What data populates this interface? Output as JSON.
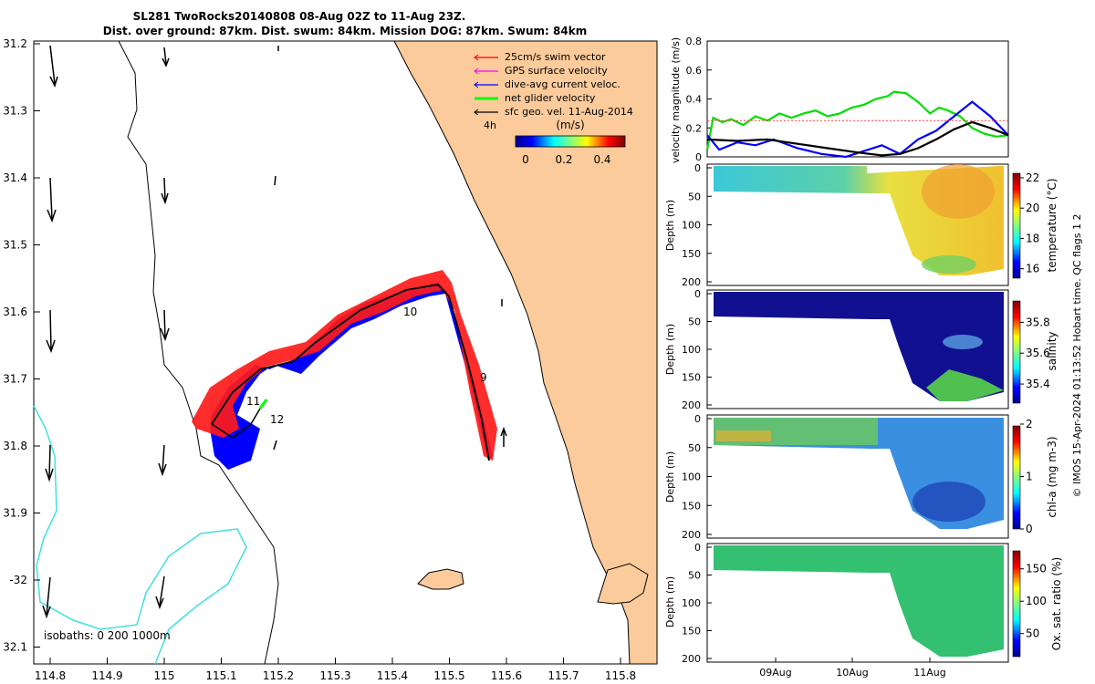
{
  "header": {
    "line1": "SL281 TwoRocks20140808 08-Aug 02Z to 11-Aug 23Z.",
    "line2": "Dist. over ground: 87km. Dist. swum: 84km. Mission DOG: 87km. Swum: 84km"
  },
  "map": {
    "lat_ticks": [
      "31.2",
      "31.3",
      "31.4",
      "31.5",
      "31.6",
      "31.7",
      "31.8",
      "31.9",
      "-32",
      "32.1"
    ],
    "lon_ticks": [
      "114.8",
      "114.9",
      "115",
      "115.1",
      "115.2",
      "115.3",
      "115.4",
      "115.5",
      "115.6",
      "115.7",
      "115.8"
    ],
    "legend": [
      {
        "label": "25cm/s swim vector",
        "color": "#ff0000"
      },
      {
        "label": "GPS surface velocity",
        "color": "#ff00ff"
      },
      {
        "label": "dive-avg current veloc.",
        "color": "#0000ff"
      },
      {
        "label": "net glider velocity",
        "color": "#00ff00"
      },
      {
        "label": "sfc geo. vel. 11-Aug-2014",
        "color": "#000000"
      }
    ],
    "scale_tag": "4h",
    "colorbar": {
      "title": "(m/s)",
      "ticks": [
        "0",
        "0.2",
        "0.4"
      ]
    },
    "track_labels": [
      "9",
      "10",
      "11",
      "12"
    ],
    "isobaths": "isobaths: 0   200  1000m",
    "land_color": "#fccb9b",
    "isobath_200_color": "#40e0e0"
  },
  "chart_data": [
    {
      "type": "line",
      "ylabel": "velocity magnitude (m/s)",
      "ylim": [
        0,
        0.8
      ],
      "yticks": [
        "0",
        "0.2",
        "0.4",
        "0.6",
        "0.8"
      ],
      "xlim": [
        "08-Aug",
        "11-Aug"
      ],
      "series": [
        {
          "color": "#00dd00",
          "x": [
            0,
            0.02,
            0.05,
            0.08,
            0.12,
            0.16,
            0.2,
            0.24,
            0.28,
            0.32,
            0.36,
            0.4,
            0.44,
            0.48,
            0.52,
            0.56,
            0.6,
            0.62,
            0.66,
            0.7,
            0.74,
            0.77,
            0.8,
            0.84,
            0.88,
            0.92,
            0.96,
            1.0
          ],
          "values": [
            0.05,
            0.27,
            0.24,
            0.26,
            0.22,
            0.28,
            0.25,
            0.3,
            0.27,
            0.3,
            0.32,
            0.28,
            0.3,
            0.34,
            0.36,
            0.4,
            0.42,
            0.45,
            0.44,
            0.38,
            0.3,
            0.34,
            0.32,
            0.28,
            0.2,
            0.16,
            0.14,
            0.15
          ]
        },
        {
          "color": "#0000ff",
          "x": [
            0,
            0.04,
            0.1,
            0.16,
            0.22,
            0.3,
            0.38,
            0.46,
            0.52,
            0.58,
            0.64,
            0.7,
            0.76,
            0.82,
            0.88,
            0.94,
            1.0
          ],
          "values": [
            0.15,
            0.05,
            0.1,
            0.08,
            0.12,
            0.06,
            0.02,
            0.0,
            0.04,
            0.08,
            0.02,
            0.12,
            0.18,
            0.28,
            0.38,
            0.28,
            0.15
          ]
        },
        {
          "color": "#000000",
          "x": [
            0,
            0.1,
            0.2,
            0.3,
            0.4,
            0.5,
            0.58,
            0.64,
            0.7,
            0.76,
            0.82,
            0.88,
            0.94,
            1.0
          ],
          "values": [
            0.12,
            0.11,
            0.12,
            0.09,
            0.06,
            0.03,
            0.01,
            0.02,
            0.06,
            0.12,
            0.19,
            0.24,
            0.2,
            0.15
          ]
        },
        {
          "color": "#ff4444",
          "x": [
            0,
            1.0
          ],
          "values": [
            0.25,
            0.25
          ]
        }
      ]
    },
    {
      "type": "heatmap",
      "ylabel": "Depth (m)",
      "yticks": [
        "0",
        "50",
        "100",
        "150",
        "200"
      ],
      "colorbar_label": "temperature (°C)",
      "colorbar_ticks": [
        "16",
        "18",
        "20",
        "22"
      ]
    },
    {
      "type": "heatmap",
      "ylabel": "Depth (m)",
      "yticks": [
        "0",
        "50",
        "100",
        "150",
        "200"
      ],
      "colorbar_label": "salinity",
      "colorbar_ticks": [
        "35.4",
        "35.6",
        "35.8"
      ]
    },
    {
      "type": "heatmap",
      "ylabel": "Depth (m)",
      "yticks": [
        "0",
        "50",
        "100",
        "150",
        "200"
      ],
      "colorbar_label": "chl-a (mg m-3)",
      "colorbar_ticks": [
        "0",
        "1",
        "2"
      ]
    },
    {
      "type": "heatmap",
      "ylabel": "Depth (m)",
      "yticks": [
        "0",
        "50",
        "100",
        "150",
        "200"
      ],
      "colorbar_label": "Ox. sat. ratio (%)",
      "colorbar_ticks": [
        "50",
        "100",
        "150"
      ],
      "x_ticks": [
        "09Aug",
        "10Aug",
        "11Aug"
      ]
    }
  ],
  "side_note": "© IMOS 15-Apr-2024 01:13:52 Hobart time. QC flags 1  2"
}
